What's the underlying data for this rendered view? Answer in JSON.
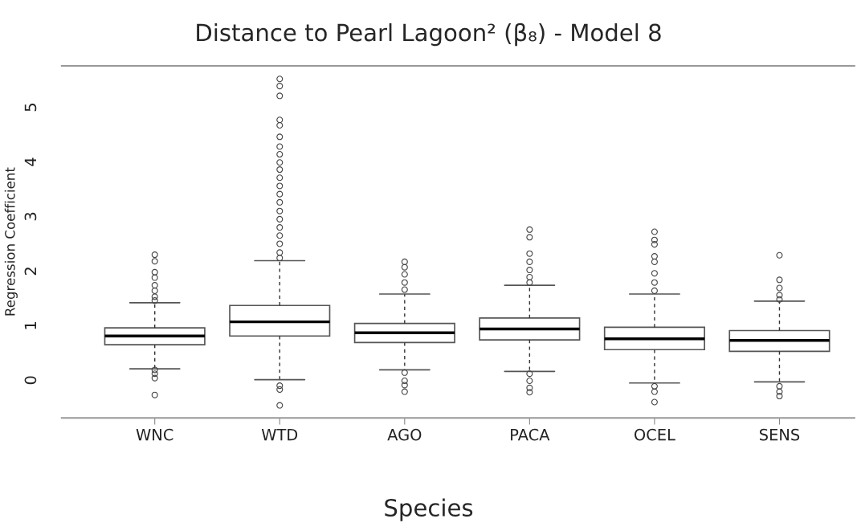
{
  "chart_data": {
    "type": "box",
    "title": "Distance to Pearl Lagoon² (β₈) - Model 8",
    "xlabel": "Species",
    "ylabel": "Regression Coefficient",
    "categories": [
      "WNC",
      "WTD",
      "AGO",
      "PACA",
      "OCEL",
      "SENS"
    ],
    "boxes": [
      {
        "low": 0.21,
        "q1": 0.65,
        "median": 0.81,
        "q3": 0.96,
        "high": 1.42,
        "outliers": [
          2.3,
          2.18,
          1.98,
          1.88,
          1.74,
          1.64,
          1.53,
          1.46,
          0.19,
          0.12,
          0.04,
          -0.27
        ]
      },
      {
        "low": 0.01,
        "q1": 0.81,
        "median": 1.07,
        "q3": 1.37,
        "high": 2.19,
        "outliers": [
          5.52,
          5.39,
          5.21,
          4.77,
          4.67,
          4.46,
          4.28,
          4.14,
          3.99,
          3.86,
          3.71,
          3.56,
          3.41,
          3.26,
          3.1,
          2.95,
          2.8,
          2.65,
          2.5,
          2.34,
          2.24,
          -0.1,
          -0.17,
          -0.46
        ]
      },
      {
        "low": 0.19,
        "q1": 0.69,
        "median": 0.87,
        "q3": 1.04,
        "high": 1.58,
        "outliers": [
          2.17,
          2.07,
          1.94,
          1.79,
          1.66,
          0.14,
          -0.01,
          -0.09,
          -0.21
        ]
      },
      {
        "low": 0.16,
        "q1": 0.74,
        "median": 0.94,
        "q3": 1.14,
        "high": 1.74,
        "outliers": [
          2.76,
          2.62,
          2.32,
          2.17,
          2.02,
          1.89,
          1.79,
          0.12,
          -0.01,
          -0.14,
          -0.22
        ]
      },
      {
        "low": -0.05,
        "q1": 0.56,
        "median": 0.76,
        "q3": 0.97,
        "high": 1.58,
        "outliers": [
          2.72,
          2.57,
          2.49,
          2.27,
          2.17,
          1.96,
          1.79,
          1.64,
          -0.11,
          -0.21,
          -0.4
        ]
      },
      {
        "low": -0.03,
        "q1": 0.53,
        "median": 0.73,
        "q3": 0.91,
        "high": 1.45,
        "outliers": [
          2.29,
          1.84,
          1.69,
          1.56,
          1.48,
          -0.11,
          -0.21,
          -0.29
        ]
      }
    ],
    "ylim": [
      -0.69,
      5.76
    ],
    "yticks": [
      0,
      1,
      2,
      3,
      4,
      5
    ],
    "grid": false,
    "legend": false
  }
}
